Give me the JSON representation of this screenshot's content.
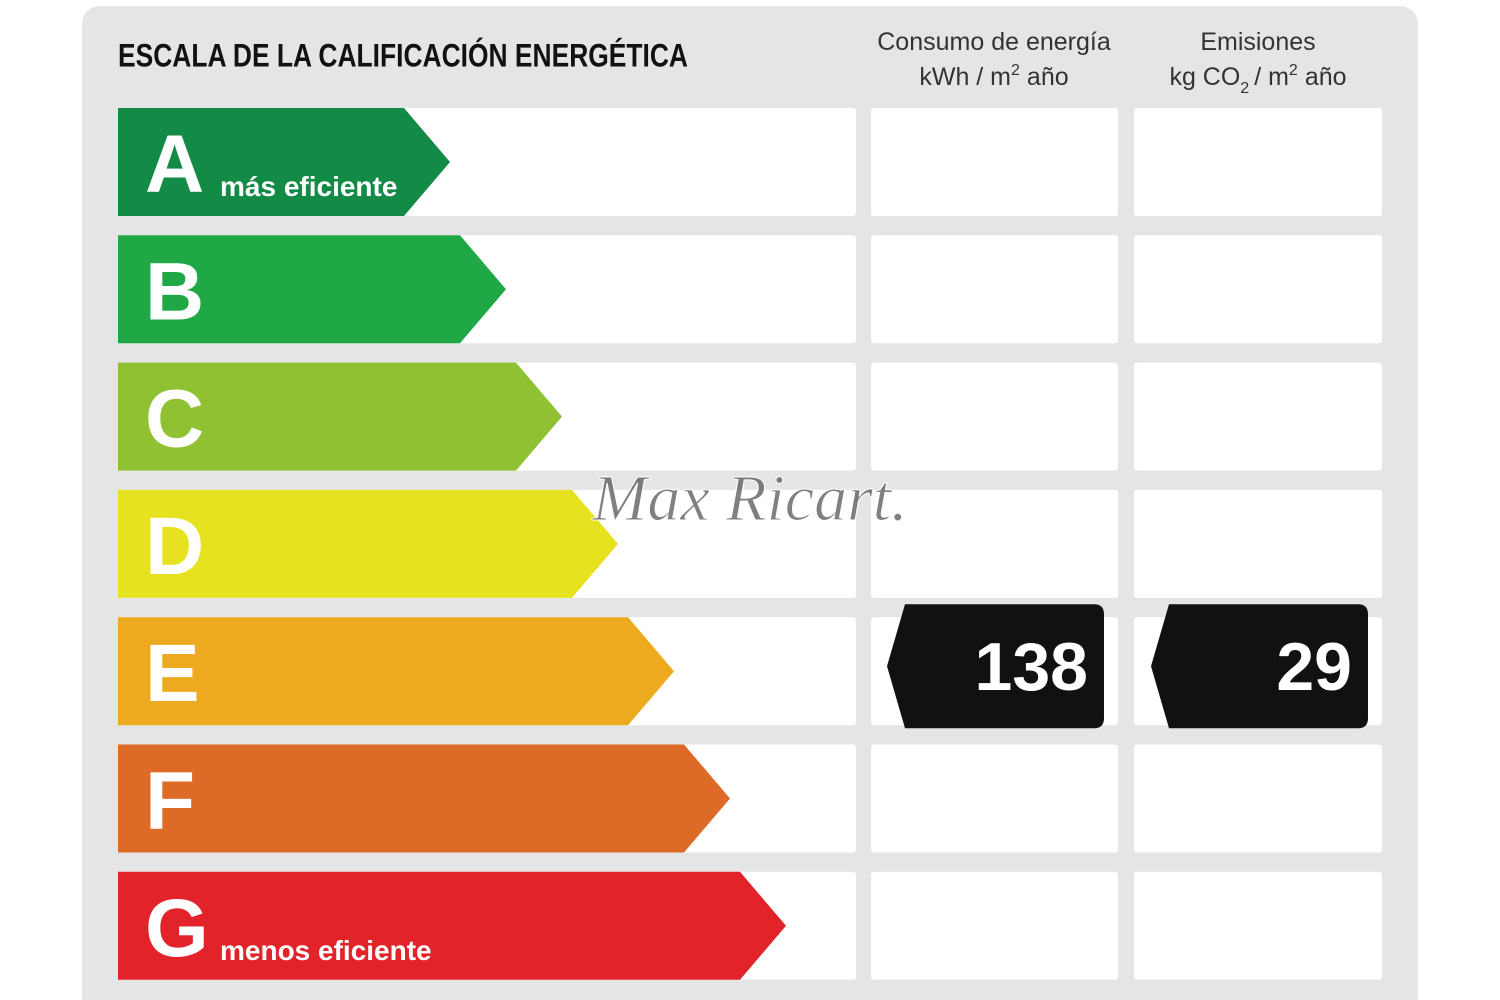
{
  "title": "ESCALA DE LA CALIFICACIÓN ENERGÉTICA",
  "energy_header": {
    "line1": "Consumo de energía",
    "line2": [
      "kWh / m",
      "2",
      "año"
    ]
  },
  "emissions_header": {
    "line1": "Emisiones",
    "line2": [
      "kg CO",
      "2",
      "/ m",
      "2",
      "año"
    ]
  },
  "ratings": [
    {
      "letter": "A",
      "label": "más eficiente",
      "color": "#138a46"
    },
    {
      "letter": "B",
      "color": "#1fa845"
    },
    {
      "letter": "C",
      "color": "#8fc133"
    },
    {
      "letter": "D",
      "color": "#e6e21f"
    },
    {
      "letter": "E",
      "color": "#eeaa1e",
      "energy": 138,
      "emissions": 29
    },
    {
      "letter": "F",
      "color": "#dd6a26"
    },
    {
      "letter": "G",
      "label": "menos eficiente",
      "color": "#e2242a"
    }
  ],
  "watermark": "Max Ricart."
}
